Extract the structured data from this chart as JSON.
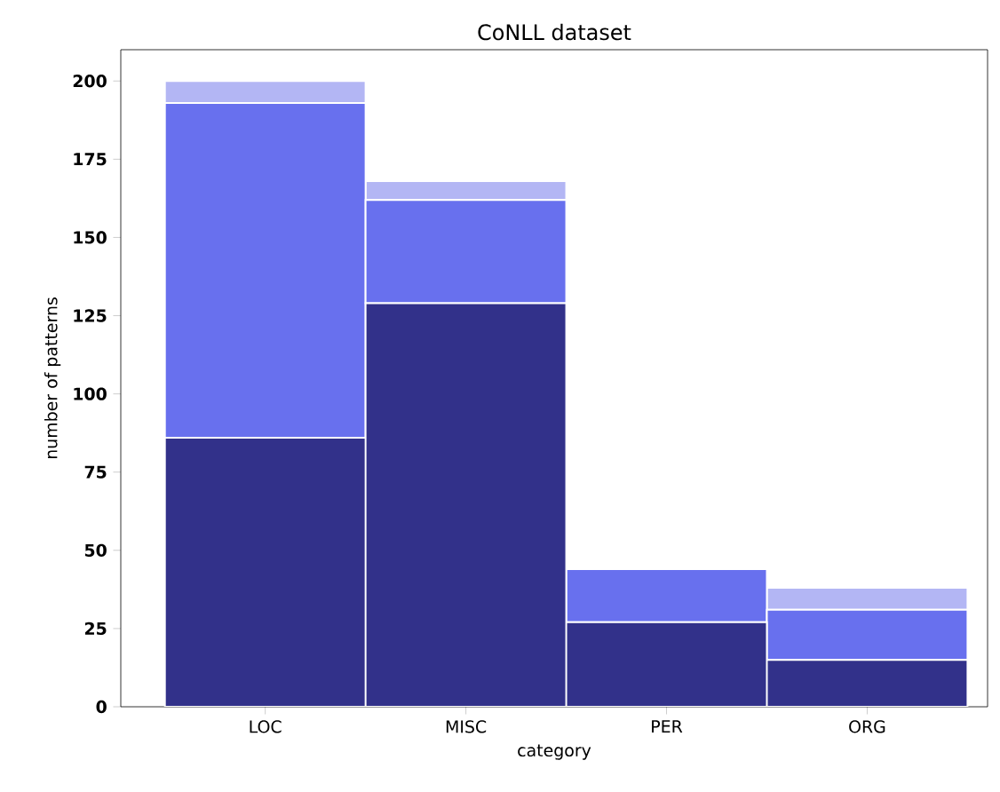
{
  "chart_data": {
    "type": "bar",
    "stacked": true,
    "title": "CoNLL dataset",
    "xlabel": "category",
    "ylabel": "number of patterns",
    "categories": [
      "LOC",
      "MISC",
      "PER",
      "ORG"
    ],
    "series": [
      {
        "color": "#32318a",
        "values": [
          86,
          129,
          27,
          15
        ]
      },
      {
        "color": "#6870ee",
        "values": [
          107,
          33,
          17,
          16
        ]
      },
      {
        "color": "#b3b6f4",
        "values": [
          7,
          6,
          0,
          7
        ]
      }
    ],
    "ylim": [
      0,
      210
    ],
    "yticks": [
      0,
      25,
      50,
      75,
      100,
      125,
      150,
      175,
      200
    ],
    "grid": false
  }
}
